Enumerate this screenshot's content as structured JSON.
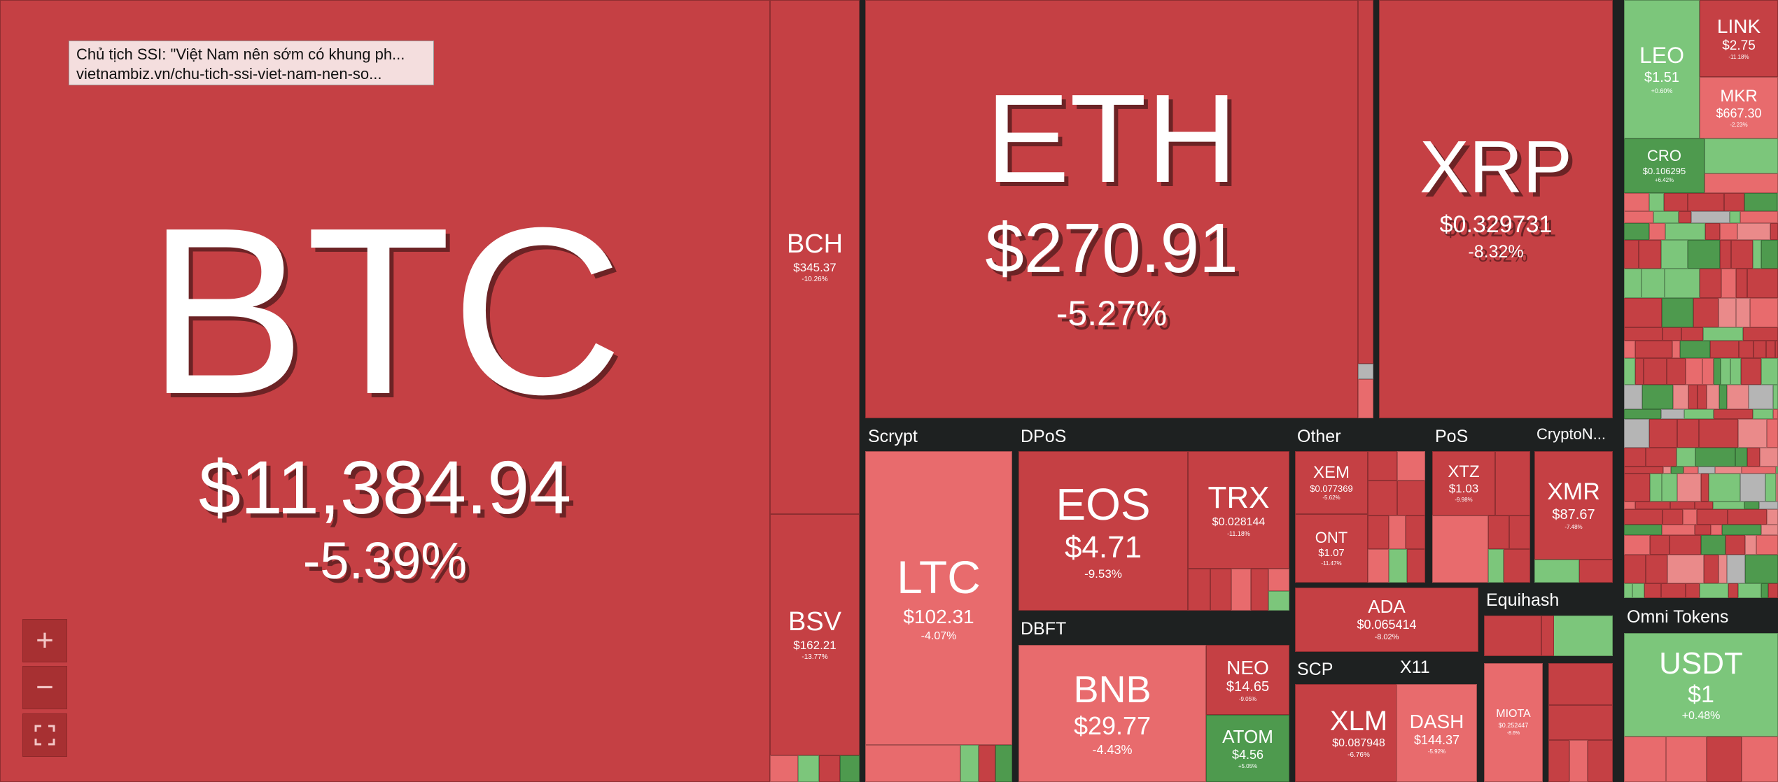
{
  "colors": {
    "dark_red": "#c54044",
    "light_red": "#e86b6d",
    "pink": "#ea8a8a",
    "light_green": "#7cc67b",
    "dark_green": "#4e9a4e",
    "gray": "#b5b5b5",
    "background": "#1e2121"
  },
  "tooltip": {
    "line1": "Chủ tịch SSI: \"Việt Nam nên sớm có khung ph...",
    "line2": "vietnambiz.vn/chu-tich-ssi-viet-nam-nen-so..."
  },
  "controls": {
    "zoom_in": "+",
    "zoom_out": "−",
    "fullscreen": "⛶"
  },
  "groups": [
    "Scrypt",
    "DPoS",
    "Other",
    "PoS",
    "CryptoN...",
    "DBFT",
    "Equihash",
    "SCP",
    "X11",
    "Omni Tokens"
  ],
  "coins": {
    "btc": {
      "symbol": "BTC",
      "price": "$11,384.94",
      "change": "-5.39%"
    },
    "bch": {
      "symbol": "BCH",
      "price": "$345.37",
      "change": "-10.26%"
    },
    "bsv": {
      "symbol": "BSV",
      "price": "$162.21",
      "change": "-13.77%"
    },
    "eth": {
      "symbol": "ETH",
      "price": "$270.91",
      "change": "-5.27%"
    },
    "xrp": {
      "symbol": "XRP",
      "price": "$0.329731",
      "change": "-8.32%"
    },
    "leo": {
      "symbol": "LEO",
      "price": "$1.51",
      "change": "+0.60%"
    },
    "link": {
      "symbol": "LINK",
      "price": "$2.75",
      "change": "-11.18%"
    },
    "mkr": {
      "symbol": "MKR",
      "price": "$667.30",
      "change": "-2.23%"
    },
    "cro": {
      "symbol": "CRO",
      "price": "$0.106295",
      "change": "+6.42%"
    },
    "ltc": {
      "symbol": "LTC",
      "price": "$102.31",
      "change": "-4.07%"
    },
    "eos": {
      "symbol": "EOS",
      "price": "$4.71",
      "change": "-9.53%"
    },
    "trx": {
      "symbol": "TRX",
      "price": "$0.028144",
      "change": "-11.18%"
    },
    "xem": {
      "symbol": "XEM",
      "price": "$0.077369",
      "change": "-5.62%"
    },
    "ont": {
      "symbol": "ONT",
      "price": "$1.07",
      "change": "-11.47%"
    },
    "xtz": {
      "symbol": "XTZ",
      "price": "$1.03",
      "change": "-9.98%"
    },
    "xmr": {
      "symbol": "XMR",
      "price": "$87.67",
      "change": "-7.48%"
    },
    "ada": {
      "symbol": "ADA",
      "price": "$0.065414",
      "change": "-8.02%"
    },
    "bnb": {
      "symbol": "BNB",
      "price": "$29.77",
      "change": "-4.43%"
    },
    "neo": {
      "symbol": "NEO",
      "price": "$14.65",
      "change": "-9.05%"
    },
    "atom": {
      "symbol": "ATOM",
      "price": "$4.56",
      "change": "+5.05%"
    },
    "xlm": {
      "symbol": "XLM",
      "price": "$0.087948",
      "change": "-6.76%"
    },
    "dash": {
      "symbol": "DASH",
      "price": "$144.37",
      "change": "-5.92%"
    },
    "miota": {
      "symbol": "MIOTA",
      "price": "$0.252447",
      "change": "-8.6%"
    },
    "usdt": {
      "symbol": "USDT",
      "price": "$1",
      "change": "+0.48%"
    }
  }
}
